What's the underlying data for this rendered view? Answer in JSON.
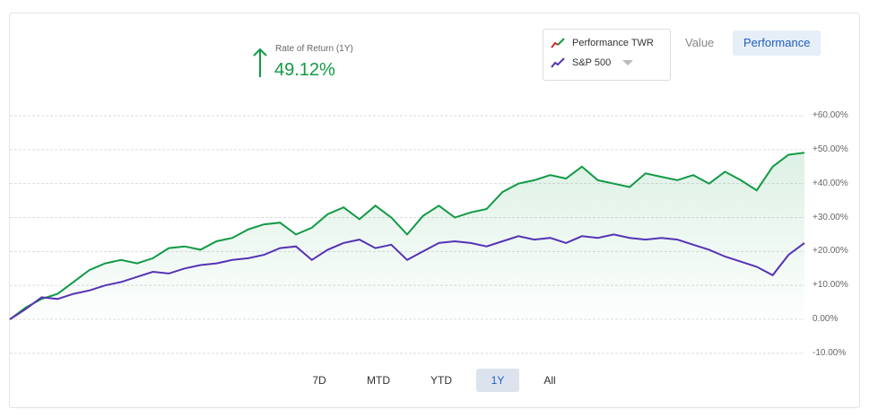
{
  "summary": {
    "label": "Rate of Return (1Y)",
    "value": "49.12%",
    "direction_icon": "arrow-up-icon",
    "color": "#119a45"
  },
  "legend": {
    "items": [
      {
        "label": "Performance TWR",
        "icon": "line-chart-icon",
        "colors": [
          "#d9262c",
          "#119a45"
        ]
      },
      {
        "label": "S&P 500",
        "icon": "line-chart-icon",
        "colors": [
          "#5533b5"
        ],
        "has_dropdown": true
      }
    ]
  },
  "view_toggle": {
    "options": [
      "Value",
      "Performance"
    ],
    "selected": "Performance"
  },
  "range_selector": {
    "options": [
      "7D",
      "MTD",
      "YTD",
      "1Y",
      "All"
    ],
    "selected": "1Y"
  },
  "chart_data": {
    "type": "line",
    "title": "Rate of Return (1Y)",
    "xlabel": "",
    "ylabel": "",
    "ylim": [
      -10,
      60
    ],
    "y_ticks": [
      "+60.00%",
      "+50.00%",
      "+40.00%",
      "+30.00%",
      "+20.00%",
      "+10.00%",
      "0.00%",
      "-10.00%"
    ],
    "y_tick_values": [
      60,
      50,
      40,
      30,
      20,
      10,
      0,
      -10
    ],
    "grid": true,
    "legend_position": "top-right",
    "x_index": [
      0,
      5,
      10,
      15,
      20,
      25,
      30,
      35,
      40,
      45,
      50,
      55,
      60,
      65,
      70,
      75,
      80,
      85,
      90,
      95,
      100,
      105,
      110,
      115,
      120,
      125,
      130,
      135,
      140,
      145,
      150,
      155,
      160,
      165,
      170,
      175,
      180,
      185,
      190,
      195,
      200,
      205,
      210,
      215,
      220,
      225,
      230,
      235,
      240,
      245,
      250
    ],
    "series": [
      {
        "name": "Performance TWR",
        "color": "#119a45",
        "fill": true,
        "values": [
          0.0,
          3.5,
          6.0,
          7.5,
          11.0,
          14.5,
          16.5,
          17.5,
          16.5,
          18.0,
          21.0,
          21.5,
          20.5,
          23.0,
          24.0,
          26.5,
          28.0,
          28.5,
          25.0,
          27.0,
          31.0,
          33.0,
          29.5,
          33.5,
          30.0,
          25.0,
          30.5,
          33.5,
          30.0,
          31.5,
          32.5,
          37.5,
          40.0,
          41.0,
          42.5,
          41.5,
          45.0,
          41.0,
          40.0,
          39.0,
          43.0,
          42.0,
          41.0,
          42.5,
          40.0,
          43.5,
          41.0,
          38.0,
          45.0,
          48.5,
          49.1
        ]
      },
      {
        "name": "S&P 500",
        "color": "#5533b5",
        "fill": false,
        "values": [
          0.0,
          3.0,
          6.5,
          6.0,
          7.5,
          8.5,
          10.0,
          11.0,
          12.5,
          14.0,
          13.5,
          15.0,
          16.0,
          16.5,
          17.5,
          18.0,
          19.0,
          21.0,
          21.5,
          17.5,
          20.5,
          22.5,
          23.5,
          21.0,
          22.0,
          17.5,
          20.0,
          22.5,
          23.0,
          22.5,
          21.5,
          23.0,
          24.5,
          23.5,
          24.0,
          22.5,
          24.5,
          24.0,
          25.0,
          24.0,
          23.5,
          24.0,
          23.5,
          22.0,
          20.5,
          18.5,
          17.0,
          15.5,
          13.0,
          19.0,
          22.5
        ]
      }
    ]
  }
}
